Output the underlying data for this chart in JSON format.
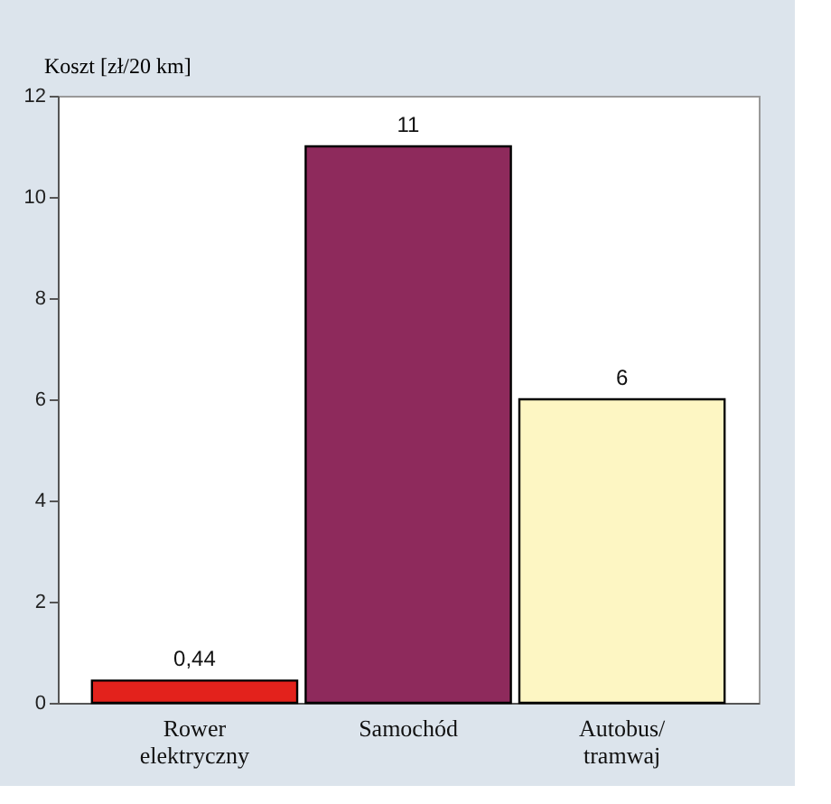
{
  "chart_data": {
    "type": "bar",
    "ylabel": "Koszt [zł/20 km]",
    "categories": [
      "Rower elektryczny",
      "Samochód",
      "Autobus/tramwaj"
    ],
    "values": [
      0.44,
      11,
      6
    ],
    "colors": [
      "#e3221c",
      "#8e2a5c",
      "#fdf6c3"
    ],
    "value_labels": [
      "0,44",
      "11",
      "6"
    ],
    "ylim": [
      0,
      12
    ],
    "yticks": [
      0,
      2,
      4,
      6,
      8,
      10,
      12
    ],
    "grid": false
  }
}
